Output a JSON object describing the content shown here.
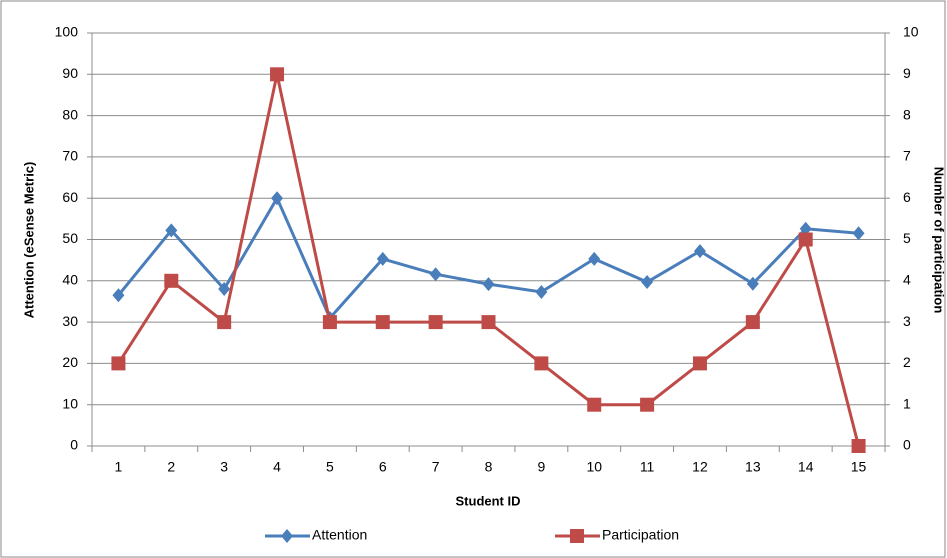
{
  "chart_data": {
    "type": "line",
    "x_label": "Student ID",
    "y_label": "Attention (eSense Metric)",
    "y2_label": "Number of participation",
    "categories": [
      "1",
      "2",
      "3",
      "4",
      "5",
      "6",
      "7",
      "8",
      "9",
      "10",
      "11",
      "12",
      "13",
      "14",
      "15"
    ],
    "series": [
      {
        "name": "Attention",
        "color": "#4a7ebb",
        "marker": "diamond",
        "values": [
          36.5,
          52.2,
          38,
          60,
          31,
          45.3,
          41.6,
          39.2,
          37.3,
          45.3,
          39.7,
          47.2,
          39.3,
          52.6,
          51.5
        ]
      },
      {
        "name": "Participation",
        "color": "#be4b48",
        "marker": "square",
        "axis": "y2",
        "values": [
          2,
          4,
          3,
          9,
          3,
          3,
          3,
          3,
          2,
          1,
          1,
          2,
          3,
          5,
          0
        ]
      }
    ],
    "ylim": [
      0,
      100
    ],
    "yticks": [
      0,
      10,
      20,
      30,
      40,
      50,
      60,
      70,
      80,
      90,
      100
    ],
    "y2lim": [
      0,
      10
    ],
    "y2ticks": [
      0,
      1,
      2,
      3,
      4,
      5,
      6,
      7,
      8,
      9,
      10
    ],
    "grid": true,
    "legend": "bottom"
  }
}
